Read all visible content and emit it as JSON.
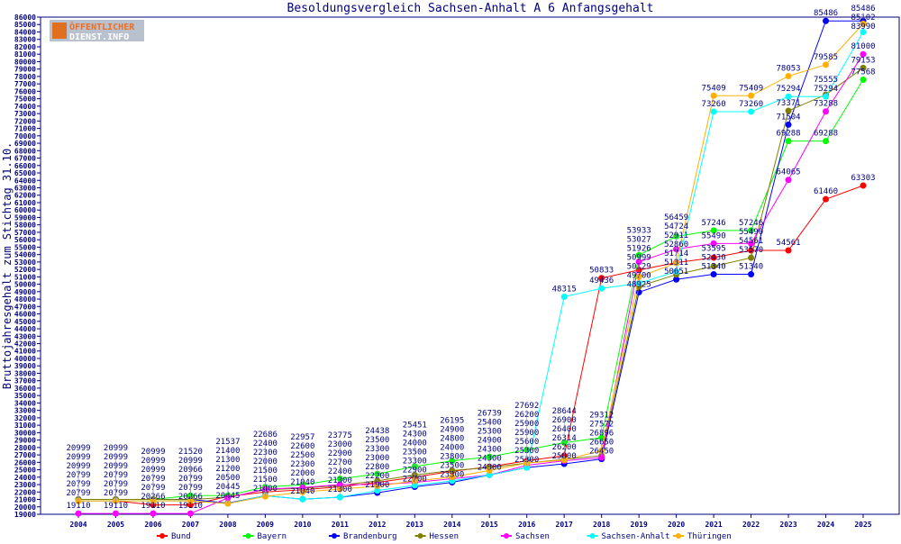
{
  "logo": {
    "line1": "ÖFFENTLICHER",
    "line2": "DIENST.INFO"
  },
  "chart_data": {
    "type": "line",
    "title": "Besoldungsvergleich Sachsen-Anhalt A 6 Anfangsgehalt",
    "xlabel": "",
    "ylabel": "Bruttojahresgehalt zum Stichtag 31.10.",
    "ylim": [
      19000,
      86000
    ],
    "ytick_step": 1000,
    "grid": false,
    "legend": "bottom",
    "categories": [
      "2004",
      "2005",
      "2006",
      "2007",
      "2008",
      "2009",
      "2010",
      "2011",
      "2012",
      "2013",
      "2014",
      "2015",
      "2016",
      "2017",
      "2018",
      "2019",
      "2020",
      "2021",
      "2022",
      "2023",
      "2024",
      "2025"
    ],
    "series": [
      {
        "name": "Bund",
        "color": "#ff0000",
        "values": [
          20799,
          20799,
          20266,
          20266,
          21400,
          22000,
          22300,
          22700,
          23300,
          24000,
          24800,
          25400,
          26200,
          26900,
          50833,
          51926,
          52911,
          53595,
          54561,
          54561,
          61460,
          63303
        ]
      },
      {
        "name": "Bayern",
        "color": "#00ff00",
        "values": [
          20999,
          20999,
          20999,
          21520,
          21537,
          22686,
          22957,
          23775,
          24438,
          25451,
          26195,
          26739,
          27692,
          28644,
          29312,
          53933,
          56459,
          57246,
          57246,
          69288,
          69288,
          77568
        ]
      },
      {
        "name": "Brandenburg",
        "color": "#0000ff",
        "values": [
          20999,
          20999,
          20999,
          20999,
          20500,
          21500,
          21040,
          21300,
          21900,
          22700,
          23300,
          24300,
          25300,
          25800,
          26450,
          48925,
          50651,
          51340,
          51340,
          71504,
          85486,
          85486
        ]
      },
      {
        "name": "Hessen",
        "color": "#808000",
        "values": [
          20999,
          20999,
          20999,
          20966,
          21300,
          22300,
          22500,
          22900,
          23500,
          24300,
          24900,
          25300,
          25900,
          26400,
          26896,
          49700,
          51311,
          52430,
          53570,
          73371,
          75555,
          79153
        ]
      },
      {
        "name": "Sachsen",
        "color": "#ff00ff",
        "values": [
          19110,
          19110,
          19110,
          19110,
          21200,
          22400,
          22600,
          23000,
          23000,
          23300,
          23800,
          24300,
          25600,
          26200,
          26650,
          53027,
          54724,
          55490,
          55490,
          64065,
          73288,
          81000
        ]
      },
      {
        "name": "Sachsen-Anhalt",
        "color": "#00ffff",
        "values": [
          20799,
          20799,
          20799,
          20799,
          20445,
          21500,
          21040,
          21300,
          22200,
          22900,
          23500,
          24300,
          25300,
          48315,
          49436,
          50129,
          51714,
          73260,
          73260,
          75294,
          75294,
          83990
        ]
      },
      {
        "name": "Thüringen",
        "color": "#ffb000",
        "values": [
          20799,
          20799,
          20799,
          20799,
          20445,
          21400,
          22000,
          22400,
          22800,
          23500,
          24000,
          24900,
          25900,
          26314,
          27572,
          50999,
          52860,
          75409,
          75409,
          78053,
          79585,
          85102
        ]
      }
    ]
  }
}
